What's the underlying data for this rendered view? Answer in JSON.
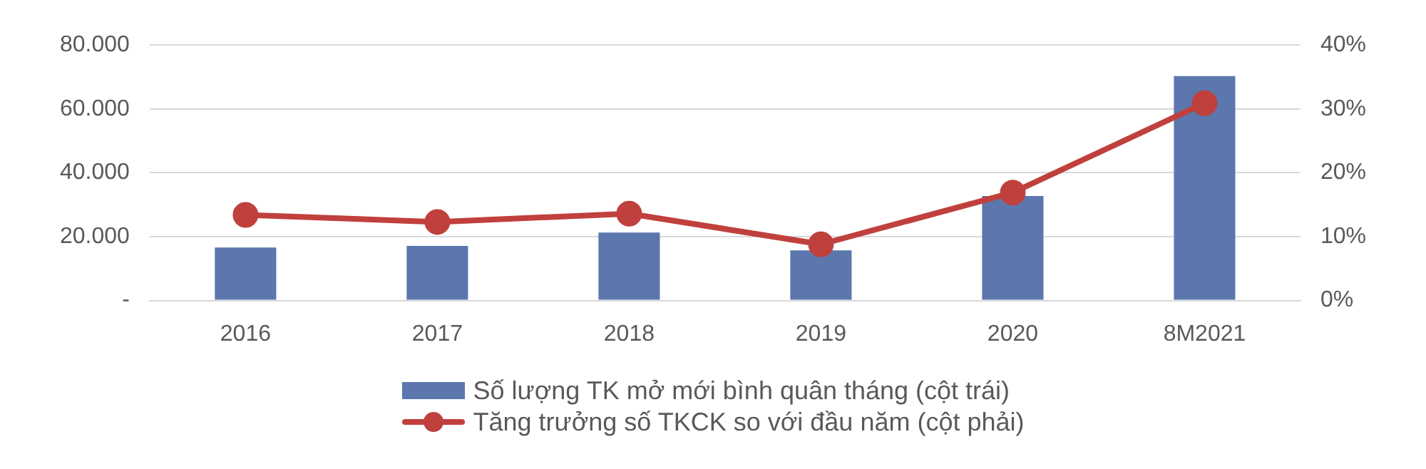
{
  "chart_data": {
    "type": "bar",
    "categories": [
      "2016",
      "2017",
      "2018",
      "2019",
      "2020",
      "8M2021"
    ],
    "series": [
      {
        "name": "Số lượng TK mở mới bình quân tháng (cột trái)",
        "color": "#5b77ad",
        "values": [
          16600,
          17100,
          21300,
          15700,
          32700,
          70300
        ]
      },
      {
        "name": "Tăng trưởng số TKCK so với đầu năm (cột phải)",
        "type": "line",
        "axis": "y2",
        "color": "#c0403d",
        "marker": "circle",
        "values": [
          13.4,
          12.3,
          13.6,
          8.8,
          16.9,
          30.9
        ]
      }
    ],
    "ylim": [
      0,
      80000
    ],
    "yticks": [
      {
        "value": 0,
        "label": "-"
      },
      {
        "value": 20000,
        "label": "20.000"
      },
      {
        "value": 40000,
        "label": "40.000"
      },
      {
        "value": 60000,
        "label": "60.000"
      },
      {
        "value": 80000,
        "label": "80.000"
      }
    ],
    "y2lim": [
      0,
      40
    ],
    "y2ticks": [
      {
        "value": 0,
        "label": "0%"
      },
      {
        "value": 10,
        "label": "10%"
      },
      {
        "value": 20,
        "label": "20%"
      },
      {
        "value": 30,
        "label": "30%"
      },
      {
        "value": 40,
        "label": "40%"
      }
    ],
    "grid": "y",
    "legend": "bottom"
  }
}
